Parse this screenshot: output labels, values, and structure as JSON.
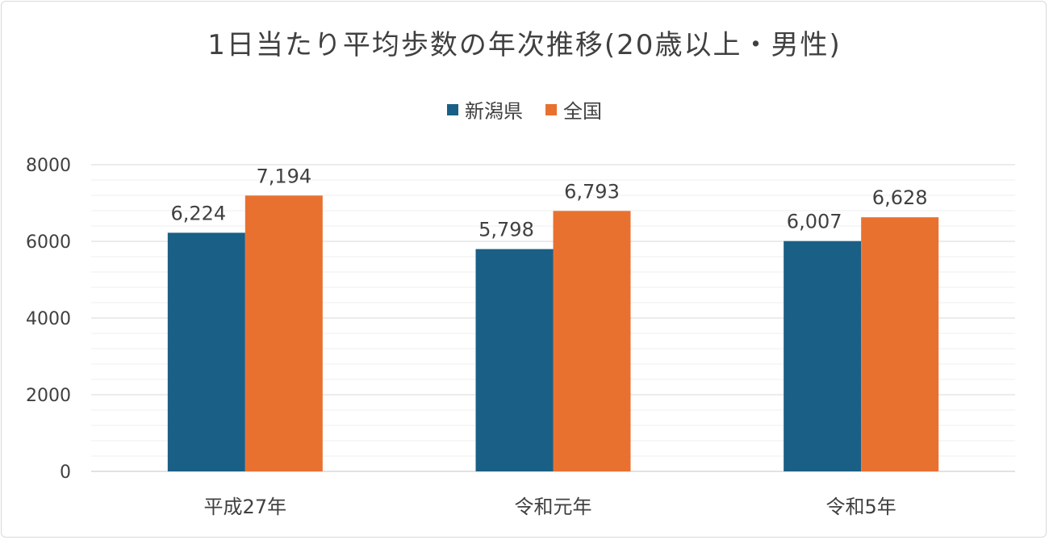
{
  "chart_data": {
    "type": "bar",
    "title": "1日当たり平均歩数の年次推移(20歳以上・男性)",
    "categories": [
      "平成27年",
      "令和元年",
      "令和5年"
    ],
    "series": [
      {
        "name": "新潟県",
        "values": [
          6224,
          5798,
          6007
        ],
        "labels": [
          "6,224",
          "5,798",
          "6,007"
        ],
        "color": "#1a5f85"
      },
      {
        "name": "全国",
        "values": [
          7194,
          6793,
          6628
        ],
        "labels": [
          "7,194",
          "6,793",
          "6,628"
        ],
        "color": "#e97130"
      }
    ],
    "ylim": [
      0,
      8000
    ],
    "yticks": [
      "0",
      "2000",
      "4000",
      "6000",
      "8000"
    ],
    "xlabel": "",
    "ylabel": "",
    "grid": true,
    "legend": "top"
  }
}
